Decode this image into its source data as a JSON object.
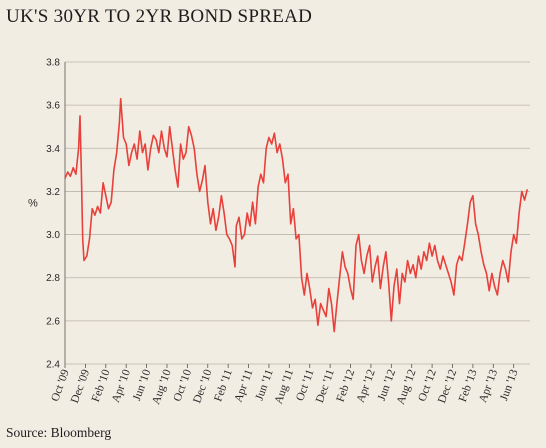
{
  "title": "UK'S 30YR TO 2YR BOND SPREAD",
  "source": "Source: Bloomberg",
  "colors": {
    "background": "#f2ede3",
    "line": "#e8403a",
    "grid": "#b9b4ab"
  },
  "chart_data": {
    "type": "line",
    "ylabel": "%",
    "ylim": [
      2.4,
      3.8
    ],
    "yticks": [
      "2.4",
      "2.6",
      "2.8",
      "3.0",
      "3.2",
      "3.4",
      "3.6",
      "3.8"
    ],
    "xticks": [
      "Oct '09",
      "Dec '09",
      "Feb '10",
      "Apr '10",
      "Jun '10",
      "Aug '10",
      "Oct '10",
      "Dec '10",
      "Feb '11",
      "Apr '11",
      "Jun '11",
      "Aug '11",
      "Oct '11",
      "Dec '11",
      "Feb '12",
      "Apr '12",
      "Jun '12",
      "Aug '12",
      "Oct '12",
      "Dec '12",
      "Feb '13",
      "Apr '13",
      "Jun '13"
    ],
    "grid": true,
    "series": [
      {
        "x_unit": "month index (0 = Oct '09)",
        "points": [
          [
            0.0,
            3.26
          ],
          [
            0.2,
            3.29
          ],
          [
            0.4,
            3.27
          ],
          [
            0.6,
            3.31
          ],
          [
            0.8,
            3.28
          ],
          [
            1.0,
            3.4
          ],
          [
            1.1,
            3.55
          ],
          [
            1.2,
            3.3
          ],
          [
            1.3,
            2.98
          ],
          [
            1.4,
            2.88
          ],
          [
            1.6,
            2.9
          ],
          [
            1.8,
            2.98
          ],
          [
            2.0,
            3.12
          ],
          [
            2.2,
            3.09
          ],
          [
            2.4,
            3.13
          ],
          [
            2.6,
            3.1
          ],
          [
            2.8,
            3.24
          ],
          [
            3.0,
            3.18
          ],
          [
            3.2,
            3.12
          ],
          [
            3.4,
            3.15
          ],
          [
            3.6,
            3.3
          ],
          [
            3.8,
            3.38
          ],
          [
            4.0,
            3.52
          ],
          [
            4.1,
            3.63
          ],
          [
            4.3,
            3.45
          ],
          [
            4.5,
            3.42
          ],
          [
            4.7,
            3.32
          ],
          [
            4.9,
            3.38
          ],
          [
            5.1,
            3.42
          ],
          [
            5.3,
            3.35
          ],
          [
            5.5,
            3.48
          ],
          [
            5.7,
            3.38
          ],
          [
            5.9,
            3.42
          ],
          [
            6.1,
            3.3
          ],
          [
            6.3,
            3.4
          ],
          [
            6.5,
            3.46
          ],
          [
            6.7,
            3.44
          ],
          [
            6.9,
            3.38
          ],
          [
            7.1,
            3.48
          ],
          [
            7.3,
            3.4
          ],
          [
            7.5,
            3.36
          ],
          [
            7.7,
            3.5
          ],
          [
            7.9,
            3.4
          ],
          [
            8.1,
            3.3
          ],
          [
            8.3,
            3.22
          ],
          [
            8.5,
            3.42
          ],
          [
            8.7,
            3.35
          ],
          [
            8.9,
            3.38
          ],
          [
            9.1,
            3.5
          ],
          [
            9.3,
            3.46
          ],
          [
            9.5,
            3.4
          ],
          [
            9.7,
            3.28
          ],
          [
            9.9,
            3.2
          ],
          [
            10.1,
            3.25
          ],
          [
            10.3,
            3.32
          ],
          [
            10.5,
            3.15
          ],
          [
            10.7,
            3.05
          ],
          [
            10.9,
            3.12
          ],
          [
            11.1,
            3.02
          ],
          [
            11.3,
            3.08
          ],
          [
            11.5,
            3.18
          ],
          [
            11.7,
            3.1
          ],
          [
            11.9,
            3.0
          ],
          [
            12.1,
            2.98
          ],
          [
            12.3,
            2.95
          ],
          [
            12.5,
            2.85
          ],
          [
            12.6,
            3.04
          ],
          [
            12.8,
            3.08
          ],
          [
            13.0,
            2.98
          ],
          [
            13.2,
            3.0
          ],
          [
            13.4,
            3.1
          ],
          [
            13.6,
            3.04
          ],
          [
            13.8,
            3.15
          ],
          [
            14.0,
            3.05
          ],
          [
            14.2,
            3.22
          ],
          [
            14.4,
            3.28
          ],
          [
            14.6,
            3.24
          ],
          [
            14.8,
            3.4
          ],
          [
            15.0,
            3.45
          ],
          [
            15.2,
            3.42
          ],
          [
            15.4,
            3.47
          ],
          [
            15.6,
            3.38
          ],
          [
            15.8,
            3.42
          ],
          [
            16.0,
            3.35
          ],
          [
            16.2,
            3.24
          ],
          [
            16.4,
            3.28
          ],
          [
            16.6,
            3.05
          ],
          [
            16.8,
            3.12
          ],
          [
            17.0,
            2.98
          ],
          [
            17.2,
            3.0
          ],
          [
            17.4,
            2.8
          ],
          [
            17.6,
            2.72
          ],
          [
            17.8,
            2.82
          ],
          [
            18.0,
            2.75
          ],
          [
            18.2,
            2.66
          ],
          [
            18.4,
            2.7
          ],
          [
            18.6,
            2.58
          ],
          [
            18.8,
            2.68
          ],
          [
            19.0,
            2.65
          ],
          [
            19.2,
            2.62
          ],
          [
            19.4,
            2.75
          ],
          [
            19.6,
            2.68
          ],
          [
            19.8,
            2.55
          ],
          [
            20.0,
            2.68
          ],
          [
            20.2,
            2.8
          ],
          [
            20.4,
            2.92
          ],
          [
            20.6,
            2.85
          ],
          [
            20.8,
            2.82
          ],
          [
            21.0,
            2.75
          ],
          [
            21.2,
            2.7
          ],
          [
            21.4,
            2.95
          ],
          [
            21.6,
            3.0
          ],
          [
            21.8,
            2.88
          ],
          [
            22.0,
            2.82
          ],
          [
            22.2,
            2.9
          ],
          [
            22.4,
            2.95
          ],
          [
            22.6,
            2.78
          ],
          [
            22.8,
            2.85
          ],
          [
            23.0,
            2.9
          ],
          [
            23.2,
            2.75
          ],
          [
            23.4,
            2.85
          ],
          [
            23.6,
            2.92
          ],
          [
            23.8,
            2.78
          ],
          [
            24.0,
            2.6
          ],
          [
            24.2,
            2.76
          ],
          [
            24.4,
            2.84
          ],
          [
            24.6,
            2.68
          ],
          [
            24.8,
            2.82
          ],
          [
            25.0,
            2.78
          ],
          [
            25.2,
            2.88
          ],
          [
            25.4,
            2.82
          ],
          [
            25.6,
            2.86
          ],
          [
            25.8,
            2.8
          ],
          [
            26.0,
            2.9
          ],
          [
            26.2,
            2.84
          ],
          [
            26.4,
            2.92
          ],
          [
            26.6,
            2.88
          ],
          [
            26.8,
            2.96
          ],
          [
            27.0,
            2.9
          ],
          [
            27.2,
            2.95
          ],
          [
            27.4,
            2.88
          ],
          [
            27.6,
            2.84
          ],
          [
            27.8,
            2.9
          ],
          [
            28.0,
            2.86
          ],
          [
            28.2,
            2.82
          ],
          [
            28.4,
            2.78
          ],
          [
            28.6,
            2.72
          ],
          [
            28.8,
            2.86
          ],
          [
            29.0,
            2.9
          ],
          [
            29.2,
            2.88
          ],
          [
            29.4,
            2.96
          ],
          [
            29.6,
            3.05
          ],
          [
            29.8,
            3.15
          ],
          [
            30.0,
            3.18
          ],
          [
            30.2,
            3.05
          ],
          [
            30.4,
            3.0
          ],
          [
            30.6,
            2.92
          ],
          [
            30.8,
            2.86
          ],
          [
            31.0,
            2.82
          ],
          [
            31.2,
            2.74
          ],
          [
            31.4,
            2.82
          ],
          [
            31.6,
            2.76
          ],
          [
            31.8,
            2.72
          ],
          [
            32.0,
            2.82
          ],
          [
            32.2,
            2.88
          ],
          [
            32.4,
            2.84
          ],
          [
            32.6,
            2.78
          ],
          [
            32.8,
            2.92
          ],
          [
            33.0,
            3.0
          ],
          [
            33.2,
            2.96
          ],
          [
            33.4,
            3.1
          ],
          [
            33.6,
            3.2
          ],
          [
            33.8,
            3.16
          ],
          [
            34.0,
            3.21
          ]
        ]
      }
    ]
  }
}
